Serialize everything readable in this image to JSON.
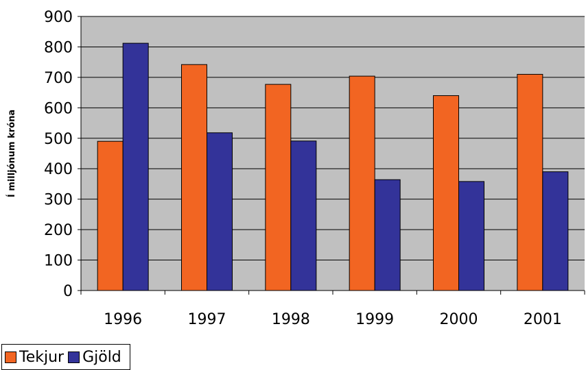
{
  "chart_data": {
    "type": "bar",
    "title": "",
    "xlabel": "",
    "ylabel": "Í milljónum króna",
    "ylim": [
      0,
      900
    ],
    "yticks": [
      "0",
      "100",
      "200",
      "300",
      "400",
      "500",
      "600",
      "700",
      "800",
      "900"
    ],
    "categories": [
      "1996",
      "1997",
      "1998",
      "1999",
      "2000",
      "2001"
    ],
    "series": [
      {
        "name": "Tekjur",
        "color": "#f26522",
        "values": [
          490,
          742,
          677,
          704,
          640,
          710
        ]
      },
      {
        "name": "Gjöld",
        "color": "#333399",
        "values": [
          812,
          518,
          491,
          364,
          358,
          390
        ]
      }
    ],
    "grid": true,
    "plot_background": "#c0c0c0",
    "legend_position": "bottom-left"
  }
}
